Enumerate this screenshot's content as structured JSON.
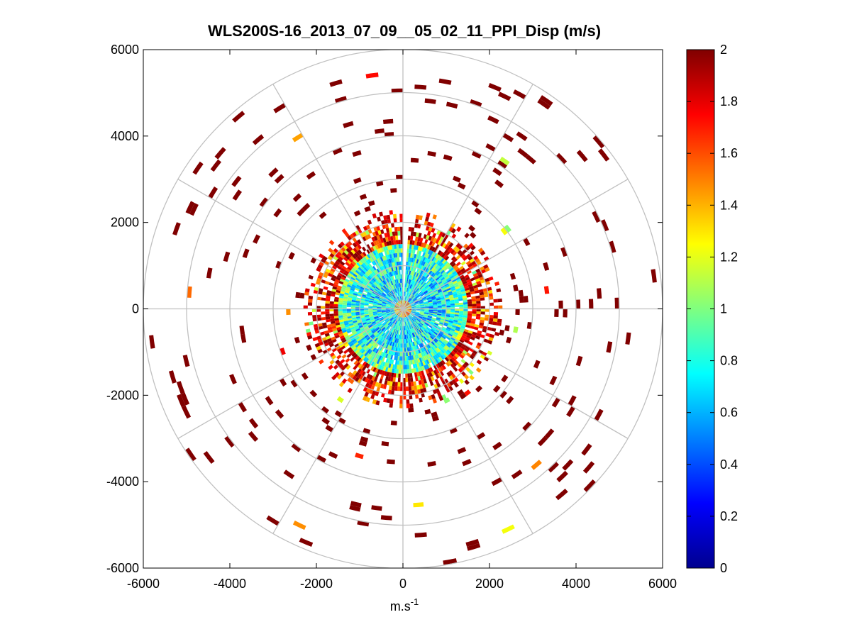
{
  "chart_data": {
    "type": "heatmap",
    "subtype": "polar-ppi",
    "title": "WLS200S-16_2013_07_09__05_02_11_PPI_Disp (m/s)",
    "xlabel": "m.s",
    "xlabel_superscript": "-1",
    "ylabel": "",
    "xlim": [
      -6000,
      6000
    ],
    "ylim": [
      -6000,
      6000
    ],
    "xticks": [
      -6000,
      -4000,
      -2000,
      0,
      2000,
      4000,
      6000
    ],
    "yticks": [
      6000,
      4000,
      2000,
      0,
      -2000,
      -4000,
      -6000
    ],
    "xtick_labels": [
      "-6000",
      "-4000",
      "-2000",
      "0",
      "2000",
      "4000",
      "6000"
    ],
    "ytick_labels": [
      "6000",
      "4000",
      "2000",
      "0",
      "-2000",
      "-4000",
      "-6000"
    ],
    "polar_rings_m": [
      1000,
      2000,
      3000,
      4000,
      5000,
      6000
    ],
    "polar_spokes_deg": [
      0,
      30,
      60,
      90,
      120,
      150,
      180,
      210,
      240,
      270,
      300,
      330
    ],
    "colorbar": {
      "colormap": "jet",
      "range": [
        0,
        2
      ],
      "ticks": [
        0,
        0.2,
        0.4,
        0.6,
        0.8,
        1,
        1.2,
        1.4,
        1.6,
        1.8,
        2
      ],
      "tick_labels": [
        "0",
        "0.2",
        "0.4",
        "0.6",
        "0.8",
        "1",
        "1.2",
        "1.4",
        "1.6",
        "1.8",
        "2"
      ]
    },
    "data_description": {
      "max_range_m": 6000,
      "dense_core_radius_m": 2300,
      "value_inner": 0.7,
      "value_outer": 2,
      "missing_sector_deg": [
        0,
        3
      ]
    }
  }
}
